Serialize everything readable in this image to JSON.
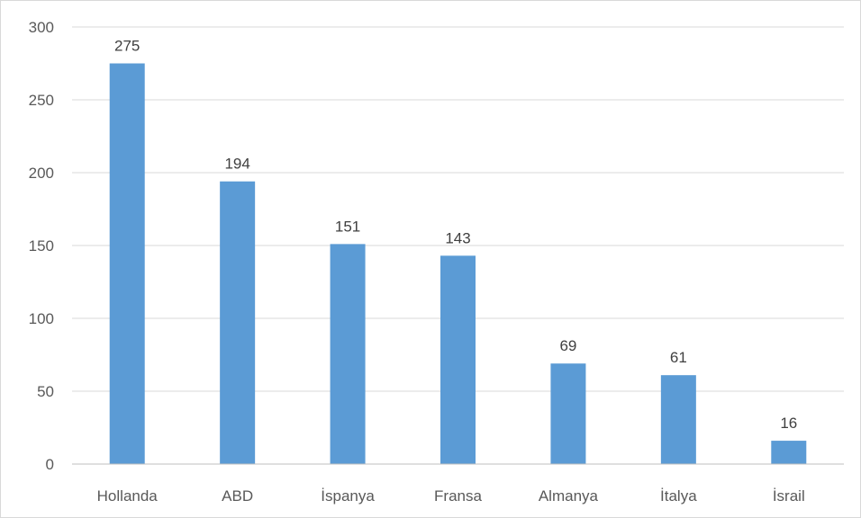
{
  "chart_data": {
    "type": "bar",
    "title": "",
    "xlabel": "",
    "ylabel": "",
    "categories": [
      "Hollanda",
      "ABD",
      "İspanya",
      "Fransa",
      "Almanya",
      "İtalya",
      "İsrail"
    ],
    "values": [
      275,
      194,
      151,
      143,
      69,
      61,
      16
    ],
    "ylim": [
      0,
      300
    ],
    "yticks": [
      0,
      50,
      100,
      150,
      200,
      250,
      300
    ],
    "data_labels": true,
    "grid": "horizontal",
    "legend": "none",
    "bar_color": "#5b9bd5",
    "grid_color": "#d9d9d9",
    "axis_color": "#bfbfbf"
  }
}
